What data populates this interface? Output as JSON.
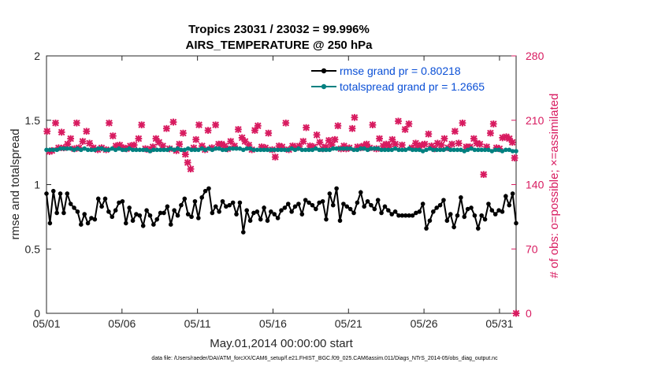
{
  "chart_data": {
    "type": "line",
    "title": "Tropics 23031 / 23032 = 99.996%",
    "subtitle": "AIRS_TEMPERATURE @ 250 hPa",
    "xlabel": "May.01,2014 00:00:00 start",
    "ylabel_left": "rmse and totalspread",
    "ylabel_right": "# of obs: o=possible; ×=assimilated",
    "x_tick_labels": [
      "05/01",
      "05/06",
      "05/11",
      "05/16",
      "05/21",
      "05/26",
      "05/31"
    ],
    "x_tick_values": [
      0,
      5,
      10,
      15,
      20,
      25,
      30
    ],
    "xlim": [
      0,
      31.1
    ],
    "ylim_left": [
      0,
      2
    ],
    "ylim_right": [
      0,
      280
    ],
    "y_left_ticks": [
      "0",
      "0.5",
      "1",
      "1.5",
      "2"
    ],
    "y_right_ticks": [
      "0",
      "70",
      "140",
      "210",
      "280"
    ],
    "footnote": "data file: /Users/raeder/DAI/ATM_forcXX/CAM6_setup/f.e21.FHIST_BGC.f09_025.CAM6assim.011/Diags_NTrS_2014-05/obs_diag_output.nc",
    "colors": {
      "rmse": "#000000",
      "spread": "#008080",
      "obs": "#d81b60",
      "legend_text": "#0a4fd6"
    },
    "series": [
      {
        "name": "rmse grand pr = 0.80218",
        "axis": "left",
        "values": [
          0.93,
          0.7,
          0.95,
          0.78,
          0.93,
          0.78,
          0.93,
          0.85,
          0.82,
          0.79,
          0.69,
          0.77,
          0.7,
          0.74,
          0.73,
          0.89,
          0.83,
          0.89,
          0.79,
          0.75,
          0.8,
          0.86,
          0.87,
          0.7,
          0.82,
          0.72,
          0.77,
          0.76,
          0.68,
          0.8,
          0.76,
          0.69,
          0.73,
          0.78,
          0.78,
          0.83,
          0.69,
          0.8,
          0.76,
          0.84,
          0.89,
          0.77,
          0.75,
          0.87,
          0.74,
          0.9,
          0.95,
          0.97,
          0.78,
          0.83,
          0.79,
          0.87,
          0.83,
          0.84,
          0.86,
          0.77,
          0.86,
          0.63,
          0.8,
          0.72,
          0.78,
          0.79,
          0.73,
          0.82,
          0.72,
          0.79,
          0.77,
          0.74,
          0.8,
          0.82,
          0.85,
          0.79,
          0.83,
          0.85,
          0.77,
          0.88,
          0.86,
          0.84,
          0.81,
          0.86,
          0.87,
          0.73,
          0.93,
          0.84,
          0.97,
          0.72,
          0.85,
          0.83,
          0.81,
          0.78,
          0.86,
          0.94,
          0.83,
          0.87,
          0.84,
          0.81,
          0.88,
          0.78,
          0.83,
          0.8,
          0.77,
          0.79,
          0.76,
          0.76,
          0.76,
          0.76,
          0.76,
          0.78,
          0.79,
          0.85,
          0.66,
          0.72,
          0.79,
          0.82,
          0.84,
          0.88,
          0.72,
          0.77,
          0.67,
          0.76,
          0.9,
          0.75,
          0.81,
          0.82,
          0.76,
          0.66,
          0.76,
          0.73,
          0.85,
          0.8,
          0.77,
          0.8,
          0.79,
          0.91,
          0.84,
          0.93,
          0.7
        ]
      },
      {
        "name": "totalspread grand pr = 1.2665",
        "axis": "left",
        "values": [
          1.27,
          1.27,
          1.27,
          1.27,
          1.28,
          1.28,
          1.28,
          1.28,
          1.27,
          1.28,
          1.27,
          1.28,
          1.27,
          1.27,
          1.27,
          1.28,
          1.28,
          1.27,
          1.27,
          1.28,
          1.27,
          1.28,
          1.27,
          1.27,
          1.28,
          1.27,
          1.27,
          1.27,
          1.27,
          1.27,
          1.26,
          1.27,
          1.27,
          1.27,
          1.27,
          1.27,
          1.28,
          1.27,
          1.28,
          1.27,
          1.27,
          1.28,
          1.27,
          1.27,
          1.27,
          1.28,
          1.27,
          1.28,
          1.27,
          1.28,
          1.28,
          1.27,
          1.27,
          1.28,
          1.28,
          1.28,
          1.28,
          1.27,
          1.28,
          1.28,
          1.27,
          1.27,
          1.27,
          1.27,
          1.27,
          1.27,
          1.27,
          1.27,
          1.27,
          1.27,
          1.27,
          1.28,
          1.27,
          1.28,
          1.27,
          1.27,
          1.27,
          1.27,
          1.28,
          1.27,
          1.27,
          1.27,
          1.27,
          1.28,
          1.28,
          1.28,
          1.28,
          1.28,
          1.28,
          1.27,
          1.27,
          1.28,
          1.28,
          1.27,
          1.28,
          1.28,
          1.28,
          1.27,
          1.27,
          1.27,
          1.27,
          1.28,
          1.27,
          1.27,
          1.27,
          1.28,
          1.27,
          1.27,
          1.27,
          1.26,
          1.27,
          1.28,
          1.27,
          1.27,
          1.27,
          1.27,
          1.28,
          1.27,
          1.27,
          1.27,
          1.27,
          1.26,
          1.27,
          1.28,
          1.27,
          1.27,
          1.27,
          1.27,
          1.27,
          1.26,
          1.27,
          1.27,
          1.26,
          1.27,
          1.27,
          1.26,
          1.26
        ]
      },
      {
        "name": "obs possible / assimilated",
        "axis": "right",
        "marker": "x",
        "points": [
          {
            "x": 0.04,
            "y": 198
          },
          {
            "x": 0.2,
            "y": 176
          },
          {
            "x": 0.36,
            "y": 177
          },
          {
            "x": 0.6,
            "y": 207
          },
          {
            "x": 0.8,
            "y": 180
          },
          {
            "x": 1.0,
            "y": 197
          },
          {
            "x": 1.15,
            "y": 180
          },
          {
            "x": 1.4,
            "y": 184
          },
          {
            "x": 1.6,
            "y": 190
          },
          {
            "x": 1.85,
            "y": 179
          },
          {
            "x": 2.0,
            "y": 207
          },
          {
            "x": 2.15,
            "y": 180
          },
          {
            "x": 2.4,
            "y": 187
          },
          {
            "x": 2.65,
            "y": 198
          },
          {
            "x": 2.85,
            "y": 185
          },
          {
            "x": 3.1,
            "y": 180
          },
          {
            "x": 3.4,
            "y": 178
          },
          {
            "x": 3.65,
            "y": 180
          },
          {
            "x": 3.95,
            "y": 178
          },
          {
            "x": 4.15,
            "y": 207
          },
          {
            "x": 4.4,
            "y": 193
          },
          {
            "x": 4.6,
            "y": 182
          },
          {
            "x": 4.85,
            "y": 183
          },
          {
            "x": 5.1,
            "y": 180
          },
          {
            "x": 5.3,
            "y": 179
          },
          {
            "x": 5.55,
            "y": 182
          },
          {
            "x": 5.8,
            "y": 183
          },
          {
            "x": 6.1,
            "y": 190
          },
          {
            "x": 6.3,
            "y": 205
          },
          {
            "x": 6.55,
            "y": 179
          },
          {
            "x": 6.8,
            "y": 178
          },
          {
            "x": 7.05,
            "y": 181
          },
          {
            "x": 7.25,
            "y": 190
          },
          {
            "x": 7.45,
            "y": 186
          },
          {
            "x": 7.7,
            "y": 182
          },
          {
            "x": 7.95,
            "y": 201
          },
          {
            "x": 8.15,
            "y": 179
          },
          {
            "x": 8.4,
            "y": 208
          },
          {
            "x": 8.6,
            "y": 177
          },
          {
            "x": 8.8,
            "y": 184
          },
          {
            "x": 9.05,
            "y": 196
          },
          {
            "x": 9.2,
            "y": 173
          },
          {
            "x": 9.35,
            "y": 164
          },
          {
            "x": 9.55,
            "y": 157
          },
          {
            "x": 9.75,
            "y": 180
          },
          {
            "x": 9.9,
            "y": 189
          },
          {
            "x": 10.1,
            "y": 205
          },
          {
            "x": 10.3,
            "y": 182
          },
          {
            "x": 10.5,
            "y": 178
          },
          {
            "x": 10.7,
            "y": 199
          },
          {
            "x": 10.95,
            "y": 180
          },
          {
            "x": 11.2,
            "y": 205
          },
          {
            "x": 11.4,
            "y": 184
          },
          {
            "x": 11.6,
            "y": 184
          },
          {
            "x": 11.8,
            "y": 182
          },
          {
            "x": 12.0,
            "y": 179
          },
          {
            "x": 12.2,
            "y": 187
          },
          {
            "x": 12.45,
            "y": 182
          },
          {
            "x": 12.7,
            "y": 200
          },
          {
            "x": 12.95,
            "y": 191
          },
          {
            "x": 13.15,
            "y": 187
          },
          {
            "x": 13.4,
            "y": 183
          },
          {
            "x": 13.6,
            "y": 178
          },
          {
            "x": 13.8,
            "y": 199
          },
          {
            "x": 14.0,
            "y": 204
          },
          {
            "x": 14.25,
            "y": 181
          },
          {
            "x": 14.5,
            "y": 180
          },
          {
            "x": 14.7,
            "y": 196
          },
          {
            "x": 14.95,
            "y": 178
          },
          {
            "x": 15.15,
            "y": 170
          },
          {
            "x": 15.4,
            "y": 182
          },
          {
            "x": 15.6,
            "y": 181
          },
          {
            "x": 15.85,
            "y": 207
          },
          {
            "x": 16.05,
            "y": 178
          },
          {
            "x": 16.3,
            "y": 182
          },
          {
            "x": 16.5,
            "y": 180
          },
          {
            "x": 16.75,
            "y": 182
          },
          {
            "x": 17.0,
            "y": 187
          },
          {
            "x": 17.2,
            "y": 202
          },
          {
            "x": 17.45,
            "y": 182
          },
          {
            "x": 17.7,
            "y": 181
          },
          {
            "x": 17.9,
            "y": 194
          },
          {
            "x": 18.1,
            "y": 186
          },
          {
            "x": 18.3,
            "y": 179
          },
          {
            "x": 18.5,
            "y": 181
          },
          {
            "x": 18.7,
            "y": 188
          },
          {
            "x": 18.9,
            "y": 183
          },
          {
            "x": 19.1,
            "y": 189
          },
          {
            "x": 19.3,
            "y": 204
          },
          {
            "x": 19.5,
            "y": 179
          },
          {
            "x": 19.7,
            "y": 182
          },
          {
            "x": 19.85,
            "y": 179
          },
          {
            "x": 20.05,
            "y": 180
          },
          {
            "x": 20.25,
            "y": 201
          },
          {
            "x": 20.4,
            "y": 213
          },
          {
            "x": 20.6,
            "y": 181
          },
          {
            "x": 20.8,
            "y": 180
          },
          {
            "x": 21.0,
            "y": 182
          },
          {
            "x": 21.2,
            "y": 184
          },
          {
            "x": 21.4,
            "y": 180
          },
          {
            "x": 21.6,
            "y": 205
          },
          {
            "x": 21.85,
            "y": 179
          },
          {
            "x": 22.05,
            "y": 190
          },
          {
            "x": 22.3,
            "y": 182
          },
          {
            "x": 22.5,
            "y": 184
          },
          {
            "x": 22.7,
            "y": 182
          },
          {
            "x": 22.9,
            "y": 189
          },
          {
            "x": 23.1,
            "y": 184
          },
          {
            "x": 23.3,
            "y": 209
          },
          {
            "x": 23.55,
            "y": 183
          },
          {
            "x": 23.75,
            "y": 200
          },
          {
            "x": 24.0,
            "y": 206
          },
          {
            "x": 24.2,
            "y": 180
          },
          {
            "x": 24.45,
            "y": 185
          },
          {
            "x": 24.65,
            "y": 181
          },
          {
            "x": 24.85,
            "y": 183
          },
          {
            "x": 25.05,
            "y": 184
          },
          {
            "x": 25.3,
            "y": 195
          },
          {
            "x": 25.5,
            "y": 182
          },
          {
            "x": 25.7,
            "y": 179
          },
          {
            "x": 25.9,
            "y": 185
          },
          {
            "x": 26.15,
            "y": 183
          },
          {
            "x": 26.35,
            "y": 190
          },
          {
            "x": 26.6,
            "y": 180
          },
          {
            "x": 26.85,
            "y": 184
          },
          {
            "x": 27.05,
            "y": 198
          },
          {
            "x": 27.3,
            "y": 185
          },
          {
            "x": 27.55,
            "y": 207
          },
          {
            "x": 27.8,
            "y": 181
          },
          {
            "x": 28.05,
            "y": 181
          },
          {
            "x": 28.3,
            "y": 190
          },
          {
            "x": 28.5,
            "y": 185
          },
          {
            "x": 28.7,
            "y": 184
          },
          {
            "x": 28.95,
            "y": 151
          },
          {
            "x": 29.15,
            "y": 181
          },
          {
            "x": 29.4,
            "y": 196
          },
          {
            "x": 29.6,
            "y": 206
          },
          {
            "x": 29.8,
            "y": 180
          },
          {
            "x": 30.0,
            "y": 179
          },
          {
            "x": 30.2,
            "y": 191
          },
          {
            "x": 30.45,
            "y": 192
          },
          {
            "x": 30.65,
            "y": 190
          },
          {
            "x": 30.85,
            "y": 186
          },
          {
            "x": 31.0,
            "y": 169
          },
          {
            "x": 31.1,
            "y": 0
          }
        ]
      }
    ]
  }
}
